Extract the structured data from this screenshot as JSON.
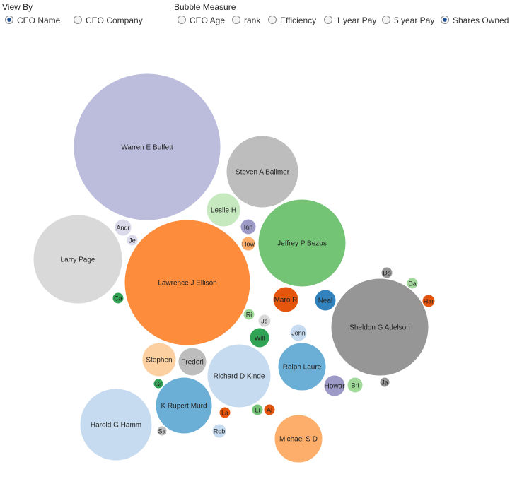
{
  "controls": {
    "view_by": {
      "label": "View By",
      "options": [
        "CEO Name",
        "CEO Company"
      ],
      "selected": 0
    },
    "bubble_measure": {
      "label": "Bubble Measure",
      "options": [
        "CEO Age",
        "rank",
        "Efficiency",
        "1 year Pay",
        "5 year Pay",
        "Shares Owned"
      ],
      "selected": 5
    }
  },
  "bubbles": [
    {
      "label": "Warren E Buffett",
      "value": 10816,
      "color": "#bcbddc"
    },
    {
      "label": "Steven A Ballmer",
      "value": 2601,
      "color": "#bdbdbd"
    },
    {
      "label": "Larry Page",
      "value": 3969,
      "color": "#d9d9d9"
    },
    {
      "label": "Lawrence J Ellison",
      "value": 7921,
      "color": "#fd8d3c"
    },
    {
      "label": "Jeffrey P Bezos",
      "value": 3844,
      "color": "#74c476"
    },
    {
      "label": "Leslie H",
      "value": 576,
      "color": "#c7e9c0"
    },
    {
      "label": "Ian",
      "value": 121,
      "color": "#9e9ac8"
    },
    {
      "label": "How",
      "value": 100,
      "color": "#fdae6b"
    },
    {
      "label": "Andr",
      "value": 144,
      "color": "#dadaeb"
    },
    {
      "label": "Je",
      "value": 64,
      "color": "#dadaeb"
    },
    {
      "label": "Sheldon G Adelson",
      "value": 4761,
      "color": "#969696"
    },
    {
      "label": "Maro R",
      "value": 324,
      "color": "#e6550d"
    },
    {
      "label": "Neal",
      "value": 225,
      "color": "#3182bd"
    },
    {
      "label": "Richard D Kinde",
      "value": 2025,
      "color": "#c6dbef"
    },
    {
      "label": "Ralph Laure",
      "value": 1156,
      "color": "#6baed6"
    },
    {
      "label": "K Rupert Murd",
      "value": 1600,
      "color": "#6baed6"
    },
    {
      "label": "Harold G Hamm",
      "value": 2601,
      "color": "#c6dbef"
    },
    {
      "label": "Michael S D",
      "value": 1156,
      "color": "#fdae6b"
    },
    {
      "label": "Stephen",
      "value": 576,
      "color": "#fdd0a2"
    },
    {
      "label": "Frederi",
      "value": 400,
      "color": "#bdbdbd"
    },
    {
      "label": "Will",
      "value": 196,
      "color": "#31a354"
    },
    {
      "label": "John",
      "value": 144,
      "color": "#c6dbef"
    },
    {
      "label": "Howar",
      "value": 225,
      "color": "#9e9ac8"
    },
    {
      "label": "Bri",
      "value": 121,
      "color": "#a1d99b"
    },
    {
      "label": "Rob",
      "value": 100,
      "color": "#c6dbef"
    },
    {
      "label": "Ca",
      "value": 64,
      "color": "#31a354"
    },
    {
      "label": "Ri",
      "value": 64,
      "color": "#a1d99b"
    },
    {
      "label": "Je",
      "value": 81,
      "color": "#d9d9d9"
    },
    {
      "label": "Do",
      "value": 64,
      "color": "#969696"
    },
    {
      "label": "Da",
      "value": 64,
      "color": "#a1d99b"
    },
    {
      "label": "Har",
      "value": 81,
      "color": "#e6550d"
    },
    {
      "label": "La",
      "value": 64,
      "color": "#e6550d"
    },
    {
      "label": "Li",
      "value": 64,
      "color": "#74c476"
    },
    {
      "label": "Al",
      "value": 64,
      "color": "#e6550d"
    },
    {
      "label": "Gr",
      "value": 49,
      "color": "#31a354"
    },
    {
      "label": "Sa",
      "value": 49,
      "color": "#bdbdbd"
    },
    {
      "label": "Ja",
      "value": 49,
      "color": "#969696"
    }
  ]
}
